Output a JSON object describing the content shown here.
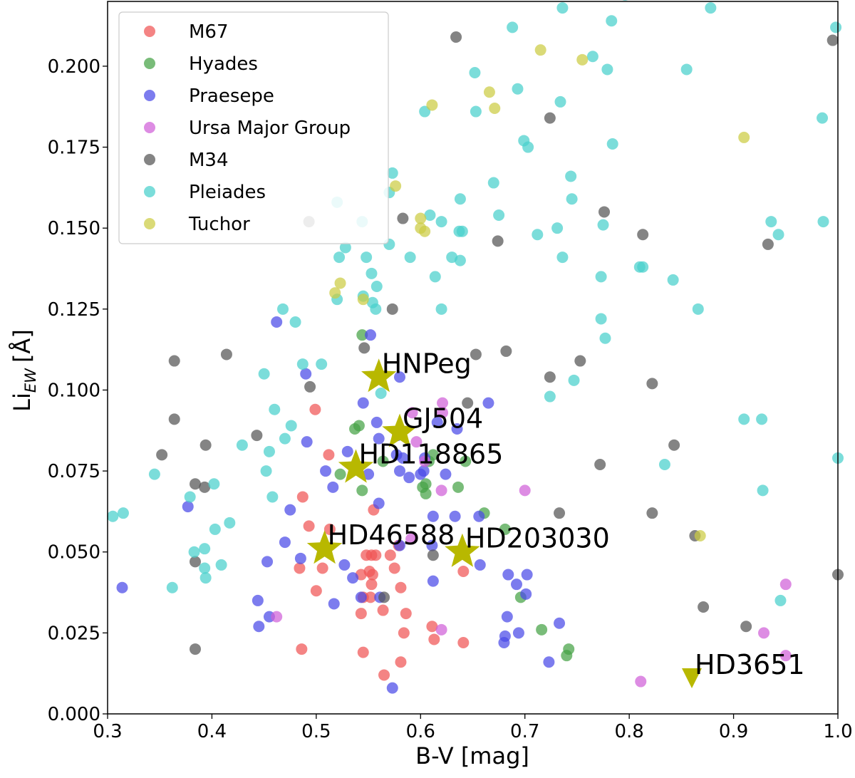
{
  "chart_data": {
    "type": "scatter",
    "xlabel": "B-V [mag]",
    "ylabel": "Li",
    "ylabel_subscript": "EW",
    "ylabel_unit": "[Å]",
    "xlim": [
      0.3,
      1.0
    ],
    "ylim": [
      0.0,
      0.22
    ],
    "xticks": [
      0.3,
      0.4,
      0.5,
      0.6,
      0.7,
      0.8,
      0.9,
      1.0
    ],
    "xtick_labels": [
      "0.3",
      "0.4",
      "0.5",
      "0.6",
      "0.7",
      "0.8",
      "0.9",
      "1.0"
    ],
    "yticks": [
      0.0,
      0.025,
      0.05,
      0.075,
      0.1,
      0.125,
      0.15,
      0.175,
      0.2
    ],
    "ytick_labels": [
      "0.000",
      "0.025",
      "0.050",
      "0.075",
      "0.100",
      "0.125",
      "0.150",
      "0.175",
      "0.200"
    ],
    "legend_position": "top-left",
    "series": [
      {
        "name": "M67",
        "color": "#f05454",
        "points": [
          [
            0.499,
            0.094
          ],
          [
            0.512,
            0.08
          ],
          [
            0.487,
            0.067
          ],
          [
            0.493,
            0.058
          ],
          [
            0.513,
            0.057
          ],
          [
            0.555,
            0.063
          ],
          [
            0.484,
            0.045
          ],
          [
            0.5,
            0.038
          ],
          [
            0.506,
            0.045
          ],
          [
            0.543,
            0.043
          ],
          [
            0.548,
            0.049
          ],
          [
            0.551,
            0.044
          ],
          [
            0.554,
            0.043
          ],
          [
            0.553,
            0.049
          ],
          [
            0.557,
            0.049
          ],
          [
            0.571,
            0.049
          ],
          [
            0.575,
            0.045
          ],
          [
            0.579,
            0.052
          ],
          [
            0.581,
            0.039
          ],
          [
            0.586,
            0.031
          ],
          [
            0.584,
            0.025
          ],
          [
            0.581,
            0.016
          ],
          [
            0.565,
            0.012
          ],
          [
            0.545,
            0.019
          ],
          [
            0.552,
            0.036
          ],
          [
            0.545,
            0.036
          ],
          [
            0.564,
            0.032
          ],
          [
            0.543,
            0.031
          ],
          [
            0.553,
            0.04
          ],
          [
            0.611,
            0.027
          ],
          [
            0.613,
            0.023
          ],
          [
            0.641,
            0.022
          ],
          [
            0.641,
            0.044
          ],
          [
            0.486,
            0.02
          ]
        ]
      },
      {
        "name": "Hyades",
        "color": "#45a245",
        "points": [
          [
            0.544,
            0.117
          ],
          [
            0.541,
            0.089
          ],
          [
            0.537,
            0.088
          ],
          [
            0.523,
            0.074
          ],
          [
            0.544,
            0.069
          ],
          [
            0.564,
            0.078
          ],
          [
            0.602,
            0.07
          ],
          [
            0.605,
            0.071
          ],
          [
            0.605,
            0.068
          ],
          [
            0.608,
            0.078
          ],
          [
            0.612,
            0.08
          ],
          [
            0.636,
            0.07
          ],
          [
            0.643,
            0.078
          ],
          [
            0.661,
            0.062
          ],
          [
            0.681,
            0.057
          ],
          [
            0.696,
            0.036
          ],
          [
            0.716,
            0.026
          ],
          [
            0.74,
            0.018
          ],
          [
            0.742,
            0.02
          ]
        ]
      },
      {
        "name": "Praesepe",
        "color": "#4a4ae8",
        "points": [
          [
            0.462,
            0.121
          ],
          [
            0.552,
            0.117
          ],
          [
            0.58,
            0.104
          ],
          [
            0.49,
            0.105
          ],
          [
            0.545,
            0.096
          ],
          [
            0.558,
            0.09
          ],
          [
            0.578,
            0.086
          ],
          [
            0.616,
            0.09
          ],
          [
            0.635,
            0.088
          ],
          [
            0.665,
            0.096
          ],
          [
            0.491,
            0.084
          ],
          [
            0.509,
            0.075
          ],
          [
            0.516,
            0.07
          ],
          [
            0.56,
            0.085
          ],
          [
            0.58,
            0.075
          ],
          [
            0.577,
            0.08
          ],
          [
            0.583,
            0.079
          ],
          [
            0.589,
            0.073
          ],
          [
            0.6,
            0.074
          ],
          [
            0.603,
            0.075
          ],
          [
            0.604,
            0.079
          ],
          [
            0.624,
            0.074
          ],
          [
            0.55,
            0.074
          ],
          [
            0.56,
            0.065
          ],
          [
            0.53,
            0.081
          ],
          [
            0.47,
            0.053
          ],
          [
            0.475,
            0.063
          ],
          [
            0.485,
            0.048
          ],
          [
            0.377,
            0.064
          ],
          [
            0.314,
            0.039
          ],
          [
            0.453,
            0.047
          ],
          [
            0.444,
            0.035
          ],
          [
            0.445,
            0.027
          ],
          [
            0.455,
            0.03
          ],
          [
            0.517,
            0.034
          ],
          [
            0.543,
            0.036
          ],
          [
            0.527,
            0.046
          ],
          [
            0.535,
            0.042
          ],
          [
            0.561,
            0.036
          ],
          [
            0.58,
            0.052
          ],
          [
            0.611,
            0.052
          ],
          [
            0.612,
            0.041
          ],
          [
            0.612,
            0.061
          ],
          [
            0.633,
            0.061
          ],
          [
            0.656,
            0.061
          ],
          [
            0.657,
            0.046
          ],
          [
            0.684,
            0.043
          ],
          [
            0.692,
            0.04
          ],
          [
            0.702,
            0.043
          ],
          [
            0.701,
            0.037
          ],
          [
            0.683,
            0.03
          ],
          [
            0.681,
            0.024
          ],
          [
            0.68,
            0.022
          ],
          [
            0.694,
            0.025
          ],
          [
            0.723,
            0.016
          ],
          [
            0.733,
            0.028
          ],
          [
            0.573,
            0.008
          ]
        ]
      },
      {
        "name": "Ursa Major Group",
        "color": "#d060d8",
        "points": [
          [
            0.621,
            0.096
          ],
          [
            0.621,
            0.093
          ],
          [
            0.592,
            0.093
          ],
          [
            0.596,
            0.084
          ],
          [
            0.604,
            0.078
          ],
          [
            0.62,
            0.069
          ],
          [
            0.7,
            0.069
          ],
          [
            0.591,
            0.054
          ],
          [
            0.62,
            0.026
          ],
          [
            0.462,
            0.03
          ],
          [
            0.929,
            0.025
          ],
          [
            0.95,
            0.04
          ],
          [
            0.95,
            0.018
          ],
          [
            0.811,
            0.01
          ]
        ]
      },
      {
        "name": "M34",
        "color": "#555555",
        "points": [
          [
            0.634,
            0.209
          ],
          [
            0.995,
            0.208
          ],
          [
            0.724,
            0.184
          ],
          [
            0.583,
            0.153
          ],
          [
            0.674,
            0.146
          ],
          [
            0.776,
            0.155
          ],
          [
            0.813,
            0.148
          ],
          [
            0.933,
            0.145
          ],
          [
            0.573,
            0.125
          ],
          [
            0.493,
            0.152
          ],
          [
            0.414,
            0.111
          ],
          [
            0.364,
            0.109
          ],
          [
            0.546,
            0.113
          ],
          [
            0.653,
            0.111
          ],
          [
            0.682,
            0.112
          ],
          [
            0.724,
            0.104
          ],
          [
            0.753,
            0.109
          ],
          [
            0.822,
            0.102
          ],
          [
            0.494,
            0.101
          ],
          [
            0.364,
            0.091
          ],
          [
            0.352,
            0.08
          ],
          [
            0.384,
            0.071
          ],
          [
            0.393,
            0.07
          ],
          [
            0.394,
            0.083
          ],
          [
            0.443,
            0.086
          ],
          [
            0.645,
            0.096
          ],
          [
            0.772,
            0.077
          ],
          [
            0.843,
            0.083
          ],
          [
            0.733,
            0.062
          ],
          [
            0.822,
            0.062
          ],
          [
            0.384,
            0.047
          ],
          [
            0.384,
            0.02
          ],
          [
            0.565,
            0.036
          ],
          [
            0.612,
            0.049
          ],
          [
            0.863,
            0.055
          ],
          [
            0.871,
            0.033
          ],
          [
            0.912,
            0.027
          ],
          [
            1.0,
            0.043
          ]
        ]
      },
      {
        "name": "Pleiades",
        "color": "#48d0cc",
        "points": [
          [
            0.736,
            0.218
          ],
          [
            0.878,
            0.218
          ],
          [
            0.796,
            0.222
          ],
          [
            0.688,
            0.212
          ],
          [
            0.783,
            0.214
          ],
          [
            0.998,
            0.212
          ],
          [
            0.765,
            0.203
          ],
          [
            0.652,
            0.198
          ],
          [
            0.779,
            0.199
          ],
          [
            0.855,
            0.199
          ],
          [
            0.693,
            0.193
          ],
          [
            0.734,
            0.189
          ],
          [
            0.604,
            0.186
          ],
          [
            0.653,
            0.186
          ],
          [
            0.985,
            0.184
          ],
          [
            0.699,
            0.177
          ],
          [
            0.703,
            0.175
          ],
          [
            0.784,
            0.176
          ],
          [
            0.573,
            0.167
          ],
          [
            0.67,
            0.164
          ],
          [
            0.744,
            0.166
          ],
          [
            0.57,
            0.161
          ],
          [
            0.638,
            0.159
          ],
          [
            0.745,
            0.159
          ],
          [
            0.986,
            0.152
          ],
          [
            0.936,
            0.152
          ],
          [
            0.52,
            0.158
          ],
          [
            0.544,
            0.152
          ],
          [
            0.609,
            0.154
          ],
          [
            0.62,
            0.152
          ],
          [
            0.675,
            0.154
          ],
          [
            0.731,
            0.15
          ],
          [
            0.775,
            0.151
          ],
          [
            0.637,
            0.149
          ],
          [
            0.64,
            0.149
          ],
          [
            0.712,
            0.148
          ],
          [
            0.943,
            0.148
          ],
          [
            0.528,
            0.144
          ],
          [
            0.522,
            0.141
          ],
          [
            0.548,
            0.141
          ],
          [
            0.57,
            0.145
          ],
          [
            0.59,
            0.141
          ],
          [
            0.614,
            0.135
          ],
          [
            0.63,
            0.141
          ],
          [
            0.638,
            0.14
          ],
          [
            0.736,
            0.141
          ],
          [
            0.773,
            0.135
          ],
          [
            0.81,
            0.138
          ],
          [
            0.813,
            0.138
          ],
          [
            0.842,
            0.134
          ],
          [
            0.553,
            0.136
          ],
          [
            0.558,
            0.132
          ],
          [
            0.52,
            0.128
          ],
          [
            0.545,
            0.129
          ],
          [
            0.554,
            0.127
          ],
          [
            0.557,
            0.125
          ],
          [
            0.468,
            0.125
          ],
          [
            0.48,
            0.121
          ],
          [
            0.62,
            0.125
          ],
          [
            0.773,
            0.122
          ],
          [
            0.866,
            0.125
          ],
          [
            0.777,
            0.116
          ],
          [
            0.45,
            0.105
          ],
          [
            0.487,
            0.108
          ],
          [
            0.505,
            0.108
          ],
          [
            0.562,
            0.099
          ],
          [
            0.724,
            0.098
          ],
          [
            0.747,
            0.103
          ],
          [
            0.46,
            0.094
          ],
          [
            0.476,
            0.089
          ],
          [
            0.47,
            0.085
          ],
          [
            0.455,
            0.081
          ],
          [
            0.429,
            0.083
          ],
          [
            0.345,
            0.074
          ],
          [
            0.452,
            0.075
          ],
          [
            0.402,
            0.071
          ],
          [
            0.379,
            0.067
          ],
          [
            0.458,
            0.067
          ],
          [
            0.91,
            0.091
          ],
          [
            0.927,
            0.091
          ],
          [
            0.834,
            0.077
          ],
          [
            0.928,
            0.069
          ],
          [
            1.0,
            0.079
          ],
          [
            0.305,
            0.061
          ],
          [
            0.315,
            0.062
          ],
          [
            0.403,
            0.057
          ],
          [
            0.417,
            0.059
          ],
          [
            0.383,
            0.05
          ],
          [
            0.393,
            0.051
          ],
          [
            0.393,
            0.045
          ],
          [
            0.394,
            0.042
          ],
          [
            0.409,
            0.046
          ],
          [
            0.362,
            0.039
          ],
          [
            0.945,
            0.035
          ]
        ]
      },
      {
        "name": "Tuchor",
        "color": "#cccc42",
        "points": [
          [
            0.715,
            0.205
          ],
          [
            0.755,
            0.202
          ],
          [
            0.666,
            0.192
          ],
          [
            0.671,
            0.187
          ],
          [
            0.611,
            0.188
          ],
          [
            0.91,
            0.178
          ],
          [
            0.576,
            0.163
          ],
          [
            0.6,
            0.153
          ],
          [
            0.6,
            0.15
          ],
          [
            0.604,
            0.149
          ],
          [
            0.523,
            0.133
          ],
          [
            0.518,
            0.13
          ],
          [
            0.545,
            0.128
          ],
          [
            0.868,
            0.055
          ]
        ]
      }
    ],
    "highlight_color": "#b8b800",
    "highlighted_stars": [
      {
        "name": "HNPeg",
        "x": 0.56,
        "y": 0.104,
        "marker": "star"
      },
      {
        "name": "GJ504",
        "x": 0.58,
        "y": 0.087,
        "marker": "star"
      },
      {
        "name": "HD118865",
        "x": 0.538,
        "y": 0.076,
        "marker": "star"
      },
      {
        "name": "HD46588",
        "x": 0.508,
        "y": 0.051,
        "marker": "star"
      },
      {
        "name": "HD203030",
        "x": 0.64,
        "y": 0.05,
        "marker": "star"
      },
      {
        "name": "HD3651",
        "x": 0.86,
        "y": 0.011,
        "marker": "triangle"
      }
    ]
  }
}
